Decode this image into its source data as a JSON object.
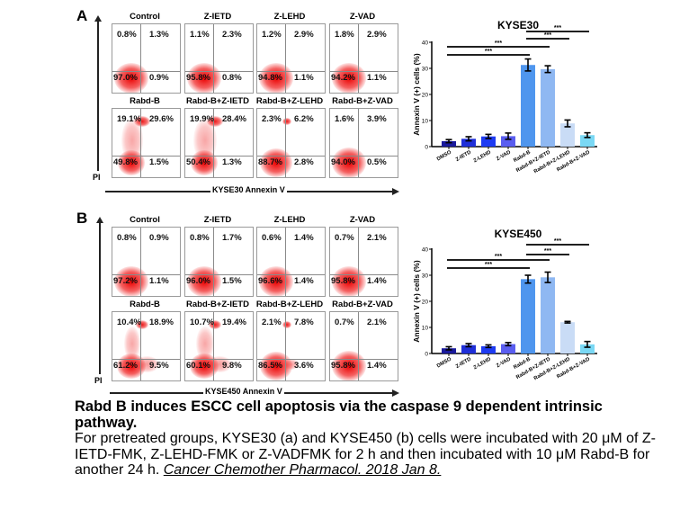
{
  "figure": {
    "panels": [
      {
        "letter": "A",
        "y_axis_label": "PI",
        "x_axis_label": "KYSE30 Annexin V",
        "flow_plots": [
          {
            "title": "Control",
            "ul": "0.8%",
            "ur": "1.3%",
            "ll": "97.0%",
            "lr": "0.9%"
          },
          {
            "title": "Z-IETD",
            "ul": "1.1%",
            "ur": "2.3%",
            "ll": "95.8%",
            "lr": "0.8%"
          },
          {
            "title": "Z-LEHD",
            "ul": "1.2%",
            "ur": "2.9%",
            "ll": "94.8%",
            "lr": "1.1%"
          },
          {
            "title": "Z-VAD",
            "ul": "1.8%",
            "ur": "2.9%",
            "ll": "94.2%",
            "lr": "1.1%"
          },
          {
            "title": "Rabd-B",
            "ul": "19.1%",
            "ur": "29.6%",
            "ll": "49.8%",
            "lr": "1.5%"
          },
          {
            "title": "Rabd-B+Z-IETD",
            "ul": "19.9%",
            "ur": "28.4%",
            "ll": "50.4%",
            "lr": "1.3%"
          },
          {
            "title": "Rabd-B+Z-LEHD",
            "ul": "2.3%",
            "ur": "6.2%",
            "ll": "88.7%",
            "lr": "2.8%"
          },
          {
            "title": "Rabd-B+Z-VAD",
            "ul": "1.6%",
            "ur": "3.9%",
            "ll": "94.0%",
            "lr": "0.5%"
          }
        ]
      },
      {
        "letter": "B",
        "y_axis_label": "PI",
        "x_axis_label": "KYSE450 Annexin V",
        "flow_plots": [
          {
            "title": "Control",
            "ul": "0.8%",
            "ur": "0.9%",
            "ll": "97.2%",
            "lr": "1.1%"
          },
          {
            "title": "Z-IETD",
            "ul": "0.8%",
            "ur": "1.7%",
            "ll": "96.0%",
            "lr": "1.5%"
          },
          {
            "title": "Z-LEHD",
            "ul": "0.6%",
            "ur": "1.4%",
            "ll": "96.6%",
            "lr": "1.4%"
          },
          {
            "title": "Z-VAD",
            "ul": "0.7%",
            "ur": "2.1%",
            "ll": "95.8%",
            "lr": "1.4%"
          },
          {
            "title": "Rabd-B",
            "ul": "10.4%",
            "ur": "18.9%",
            "ll": "61.2%",
            "lr": "9.5%"
          },
          {
            "title": "Rabd-B+Z-IETD",
            "ul": "10.7%",
            "ur": "19.4%",
            "ll": "60.1%",
            "lr": "9.8%"
          },
          {
            "title": "Rabd-B+Z-LEHD",
            "ul": "2.1%",
            "ur": "7.8%",
            "ll": "86.5%",
            "lr": "3.6%"
          },
          {
            "title": "Rabd-B+Z-VAD",
            "ul": "0.7%",
            "ur": "2.1%",
            "ll": "95.8%",
            "lr": "1.4%"
          }
        ]
      }
    ]
  },
  "chart_data": [
    {
      "type": "bar",
      "title": "KYSE30",
      "xlabel": "",
      "ylabel": "Annexin V (+) cells (%)",
      "ylim": [
        0,
        40
      ],
      "yticks": [
        0,
        10,
        20,
        30,
        40
      ],
      "categories": [
        "DMSO",
        "Z-IETD",
        "Z-LEHD",
        "Z-VAD",
        "Rabd-B",
        "Rabd-B+Z-IETD",
        "Rabd-B+Z-LEHD",
        "Rabd-B+Z-VAD"
      ],
      "values": [
        2.1,
        3.0,
        3.9,
        4.0,
        31.3,
        29.7,
        8.9,
        4.4
      ],
      "errors": [
        0.6,
        0.8,
        0.8,
        1.2,
        2.3,
        1.3,
        1.3,
        0.9
      ],
      "colors": [
        "#1a1a9c",
        "#1f2fd8",
        "#1e3bf2",
        "#5a5ef0",
        "#4f96ee",
        "#8fb8f2",
        "#c9dcf6",
        "#7ad8f4"
      ],
      "significance": [
        {
          "from": "DMSO",
          "to": "Rabd-B",
          "label": "***"
        },
        {
          "from": "DMSO",
          "to": "Rabd-B+Z-IETD",
          "label": "***"
        },
        {
          "from": "Rabd-B",
          "to": "Rabd-B+Z-LEHD",
          "label": "***"
        },
        {
          "from": "Rabd-B",
          "to": "Rabd-B+Z-VAD",
          "label": "***"
        }
      ],
      "legend": "none",
      "grid": false
    },
    {
      "type": "bar",
      "title": "KYSE450",
      "xlabel": "",
      "ylabel": "Annexin V (+) cells (%)",
      "ylim": [
        0,
        40
      ],
      "yticks": [
        0,
        10,
        20,
        30,
        40
      ],
      "categories": [
        "DMSO",
        "Z-IETD",
        "Z-LEHD",
        "Z-VAD",
        "Rabd-B",
        "Rabd-B+Z-IETD",
        "Rabd-B+Z-LEHD",
        "Rabd-B+Z-VAD"
      ],
      "values": [
        2.0,
        3.2,
        2.8,
        3.6,
        28.5,
        29.2,
        12.0,
        3.5
      ],
      "errors": [
        0.6,
        0.6,
        0.5,
        0.6,
        1.5,
        2.0,
        0.3,
        1.1
      ],
      "colors": [
        "#1a1a9c",
        "#1f2fd8",
        "#1e3bf2",
        "#5a5ef0",
        "#4f96ee",
        "#8fb8f2",
        "#c9dcf6",
        "#7ad8f4"
      ],
      "significance": [
        {
          "from": "DMSO",
          "to": "Rabd-B",
          "label": "***"
        },
        {
          "from": "DMSO",
          "to": "Rabd-B+Z-IETD",
          "label": "***"
        },
        {
          "from": "Rabd-B",
          "to": "Rabd-B+Z-LEHD",
          "label": "***"
        },
        {
          "from": "Rabd-B",
          "to": "Rabd-B+Z-VAD",
          "label": "***"
        }
      ],
      "legend": "none",
      "grid": false
    }
  ],
  "caption": {
    "title": "Rabd B induces ESCC cell apoptosis via the caspase 9 dependent intrinsic pathway.",
    "body": "For pretreated groups, KYSE30 (a) and KYSE450 (b) cells were incubated with 20 μM of Z-IETD-FMK, Z-LEHD-FMK or Z-VADFMK for 2 h and then incubated with 10 μM Rabd-B for another 24 h.",
    "citation": "Cancer Chemother Pharmacol. 2018 Jan 8."
  }
}
